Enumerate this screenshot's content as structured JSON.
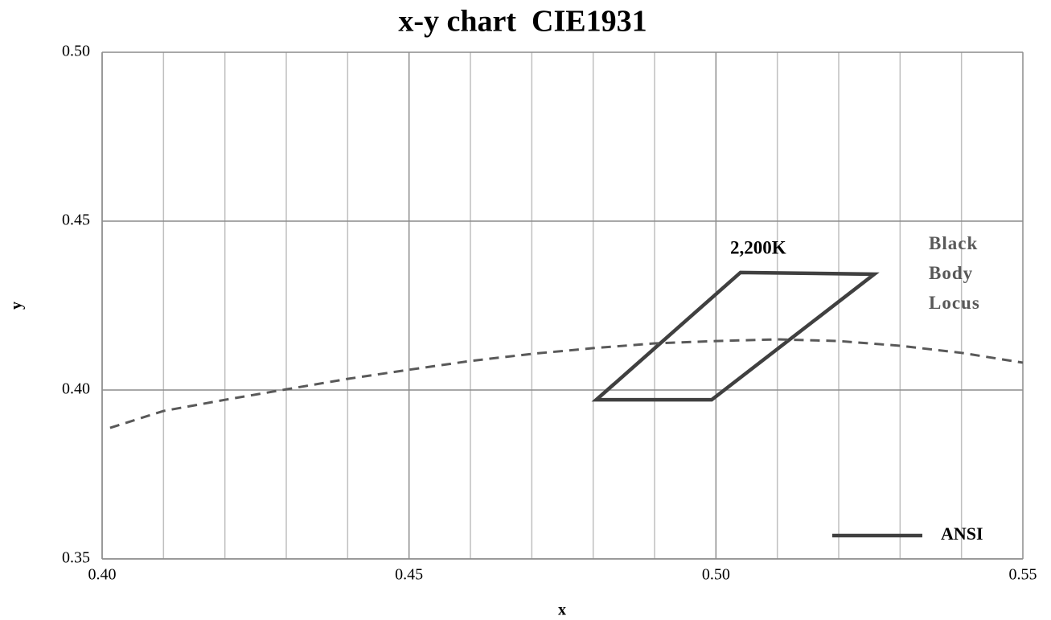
{
  "chart_data": {
    "type": "line",
    "title": "x-y chart  CIE1931",
    "xlabel": "x",
    "ylabel": "y",
    "xlim": [
      0.4,
      0.55
    ],
    "ylim": [
      0.35,
      0.5
    ],
    "xticks": [
      {
        "value": 0.4,
        "label": "0.40"
      },
      {
        "value": 0.45,
        "label": "0.45"
      },
      {
        "value": 0.5,
        "label": "0.50"
      },
      {
        "value": 0.55,
        "label": "0.55"
      }
    ],
    "yticks": [
      {
        "value": 0.35,
        "label": "0.35"
      },
      {
        "value": 0.4,
        "label": "0.40"
      },
      {
        "value": 0.45,
        "label": "0.45"
      },
      {
        "value": 0.5,
        "label": "0.50"
      }
    ],
    "x_minor_gridlines": [
      0.41,
      0.42,
      0.43,
      0.44,
      0.46,
      0.47,
      0.48,
      0.49,
      0.51,
      0.52,
      0.53,
      0.54
    ],
    "grid": true,
    "legend": "lower right",
    "series": [
      {
        "name": "ANSI",
        "color": "#404040",
        "closed": true,
        "dashed": false,
        "in_legend": true,
        "x": [
          0.4805,
          0.4993,
          0.5258,
          0.504
        ],
        "values": [
          0.3971,
          0.3971,
          0.4343,
          0.4348
        ]
      },
      {
        "name": "Black Body Locus",
        "color": "#595959",
        "closed": false,
        "dashed": true,
        "in_legend": false,
        "x": [
          0.4013,
          0.41,
          0.42,
          0.43,
          0.44,
          0.45,
          0.46,
          0.47,
          0.48,
          0.49,
          0.5,
          0.51,
          0.52,
          0.53,
          0.54,
          0.55
        ],
        "values": [
          0.3888,
          0.3938,
          0.3971,
          0.4002,
          0.4033,
          0.406,
          0.4086,
          0.4107,
          0.4124,
          0.4138,
          0.4145,
          0.415,
          0.4145,
          0.4131,
          0.411,
          0.4081
        ]
      }
    ],
    "annotations": [
      "2,200K"
    ]
  }
}
